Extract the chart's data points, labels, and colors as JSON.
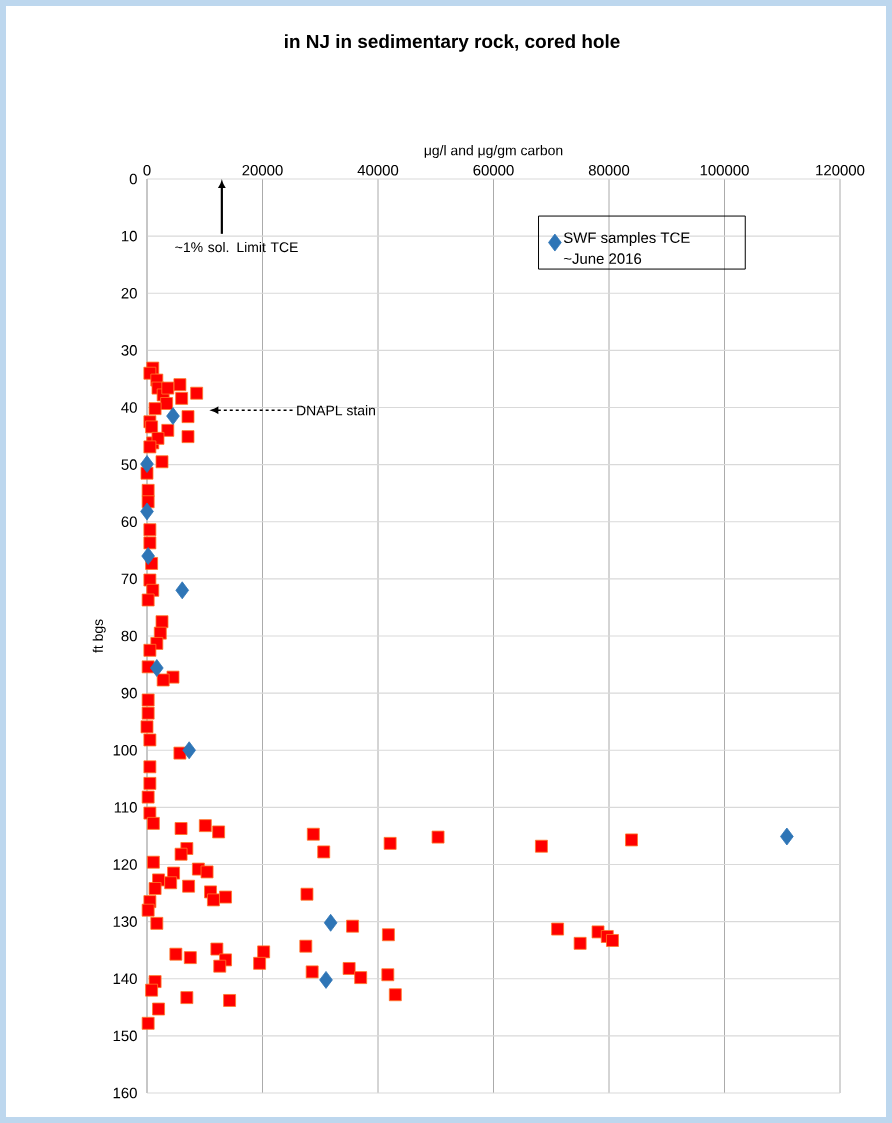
{
  "chart_data": {
    "type": "scatter",
    "title": "in NJ in sedimentary rock, cored hole",
    "xlabel": "μg/l and μg/gm carbon",
    "ylabel": "ft bgs",
    "xlim": [
      0,
      120000
    ],
    "xticks": [
      0,
      20000,
      40000,
      60000,
      80000,
      100000,
      120000
    ],
    "ylim": [
      160,
      0
    ],
    "yticks": [
      0,
      10,
      20,
      30,
      40,
      50,
      60,
      70,
      80,
      90,
      100,
      110,
      120,
      130,
      140,
      150,
      160
    ],
    "grid": true,
    "legend": "top right",
    "annotations": [
      "~1% sol. Limit TCE",
      "DNAPL stain"
    ],
    "series": [
      {
        "color": "#ff0000",
        "marker": "square",
        "x": [
          1000,
          500,
          1700,
          5700,
          8600,
          1900,
          2800,
          3600,
          6000,
          3400,
          1400,
          500,
          7100,
          7100,
          3600,
          800,
          1000,
          1900,
          2600,
          500,
          0,
          200,
          200,
          500,
          500,
          800,
          500,
          1000,
          200,
          2600,
          2300,
          1700,
          500,
          200,
          4500,
          2800,
          200,
          200,
          0,
          500,
          5700,
          500,
          500,
          200,
          500,
          1100,
          5900,
          10100,
          12400,
          28800,
          30600,
          42100,
          50400,
          6900,
          5900,
          1100,
          8900,
          10400,
          4600,
          2000,
          4100,
          7200,
          1400,
          11000,
          13600,
          11500,
          27700,
          500,
          200,
          1700,
          35600,
          41800,
          5000,
          7500,
          12100,
          13600,
          12600,
          20200,
          19500,
          27500,
          28600,
          35000,
          37000,
          41700,
          43000,
          1400,
          800,
          2000,
          200,
          6900,
          14300,
          68300,
          83900,
          71100,
          75000,
          78100,
          79700,
          80600
        ],
        "values": [
          33.1,
          34,
          35.2,
          36,
          37.5,
          36.6,
          37.8,
          36.6,
          38.4,
          39.3,
          40.2,
          42.5,
          41.6,
          45.1,
          44,
          43.4,
          46.2,
          45.4,
          49.5,
          46.9,
          51.5,
          54.5,
          56.5,
          61.4,
          63.7,
          67.3,
          70.2,
          72,
          73.7,
          77.5,
          79.5,
          81.3,
          82.5,
          85.4,
          87.2,
          87.7,
          91.2,
          93.5,
          95.9,
          98.2,
          100.5,
          102.9,
          105.8,
          108.2,
          111,
          112.8,
          113.7,
          113.2,
          114.3,
          114.7,
          117.8,
          116.3,
          115.2,
          117.2,
          118.2,
          119.6,
          120.8,
          121.3,
          121.5,
          122.7,
          123.2,
          123.8,
          124.2,
          124.8,
          125.7,
          126.2,
          125.2,
          126.5,
          128,
          130.3,
          130.8,
          132.3,
          135.7,
          136.3,
          134.8,
          136.7,
          137.8,
          135.3,
          137.3,
          134.3,
          138.8,
          138.2,
          139.8,
          139.3,
          142.8,
          140.5,
          142,
          145.3,
          147.8,
          143.3,
          143.8,
          116.8,
          115.7,
          131.3,
          133.8,
          131.8,
          132.6,
          133.3
        ]
      },
      {
        "name": "SWF samples TCE ~June 2016",
        "color": "#2e75b6",
        "marker": "diamond",
        "x": [
          4500,
          0,
          0,
          200,
          6100,
          1700,
          7300,
          31800,
          31000,
          110800
        ],
        "values": [
          41.5,
          49.9,
          58.2,
          66,
          72,
          85.6,
          100,
          130.2,
          140.2,
          115.1
        ]
      }
    ]
  }
}
